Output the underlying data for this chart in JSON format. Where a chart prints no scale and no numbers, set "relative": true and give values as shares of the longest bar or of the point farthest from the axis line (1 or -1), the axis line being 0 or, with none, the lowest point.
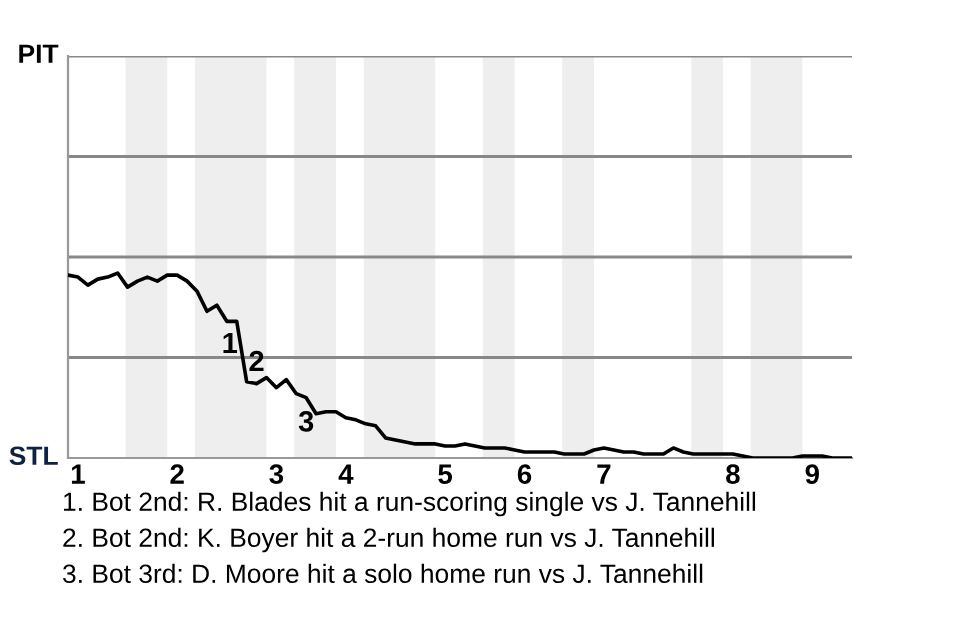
{
  "chart_data": {
    "type": "line",
    "relative": true,
    "categories": [
      null,
      "1",
      null,
      null,
      null,
      null,
      null,
      null,
      null,
      null,
      null,
      "2",
      null,
      null,
      null,
      null,
      null,
      null,
      null,
      null,
      null,
      "3",
      null,
      null,
      null,
      null,
      null,
      null,
      "4",
      null,
      null,
      null,
      null,
      null,
      null,
      null,
      null,
      null,
      "5",
      null,
      null,
      null,
      null,
      null,
      null,
      null,
      "6",
      null,
      null,
      null,
      null,
      null,
      null,
      null,
      "7",
      null,
      null,
      null,
      null,
      null,
      null,
      null,
      null,
      null,
      null,
      null,
      null,
      "8",
      null,
      null,
      null,
      null,
      null,
      null,
      null,
      "9",
      null,
      null,
      null,
      null
    ],
    "series": [
      {
        "color": "#000000",
        "values": [
          -0.09,
          -0.1,
          -0.14,
          -0.11,
          -0.1,
          -0.08,
          -0.15,
          -0.12,
          -0.1,
          -0.12,
          -0.09,
          -0.09,
          -0.12,
          -0.17,
          -0.27,
          -0.24,
          -0.32,
          -0.32,
          -0.62,
          -0.63,
          -0.6,
          -0.65,
          -0.61,
          -0.68,
          -0.7,
          -0.78,
          -0.77,
          -0.77,
          -0.8,
          -0.81,
          -0.83,
          -0.84,
          -0.9,
          -0.91,
          -0.92,
          -0.93,
          -0.93,
          -0.93,
          -0.94,
          -0.94,
          -0.93,
          -0.94,
          -0.95,
          -0.95,
          -0.95,
          -0.96,
          -0.97,
          -0.97,
          -0.97,
          -0.97,
          -0.98,
          -0.98,
          -0.98,
          -0.96,
          -0.95,
          -0.96,
          -0.97,
          -0.97,
          -0.98,
          -0.98,
          -0.98,
          -0.95,
          -0.97,
          -0.98,
          -0.98,
          -0.98,
          -0.98,
          -0.98,
          -0.99,
          -1,
          -1,
          -1,
          -1,
          -1,
          -0.99,
          -0.99,
          -0.99,
          -1,
          -1,
          -1
        ]
      }
    ],
    "ref_lines": [
      {
        "axis": "y",
        "value": 1,
        "color": "#888888"
      },
      {
        "axis": "y",
        "value": 0.5,
        "color": "#888888"
      },
      {
        "axis": "y",
        "value": -0.5,
        "color": "#888888"
      }
    ],
    "annotations": [
      "PIT",
      "STL",
      "1",
      "2",
      "3",
      "1. Bot 2nd: R. Blades hit a run-scoring single vs J. Tannehill",
      "2. Bot 2nd: K. Boyer hit a 2-run home run vs J. Tannehill",
      "3. Bot 3rd: D. Moore hit a solo home run vs J. Tannehill"
    ]
  }
}
